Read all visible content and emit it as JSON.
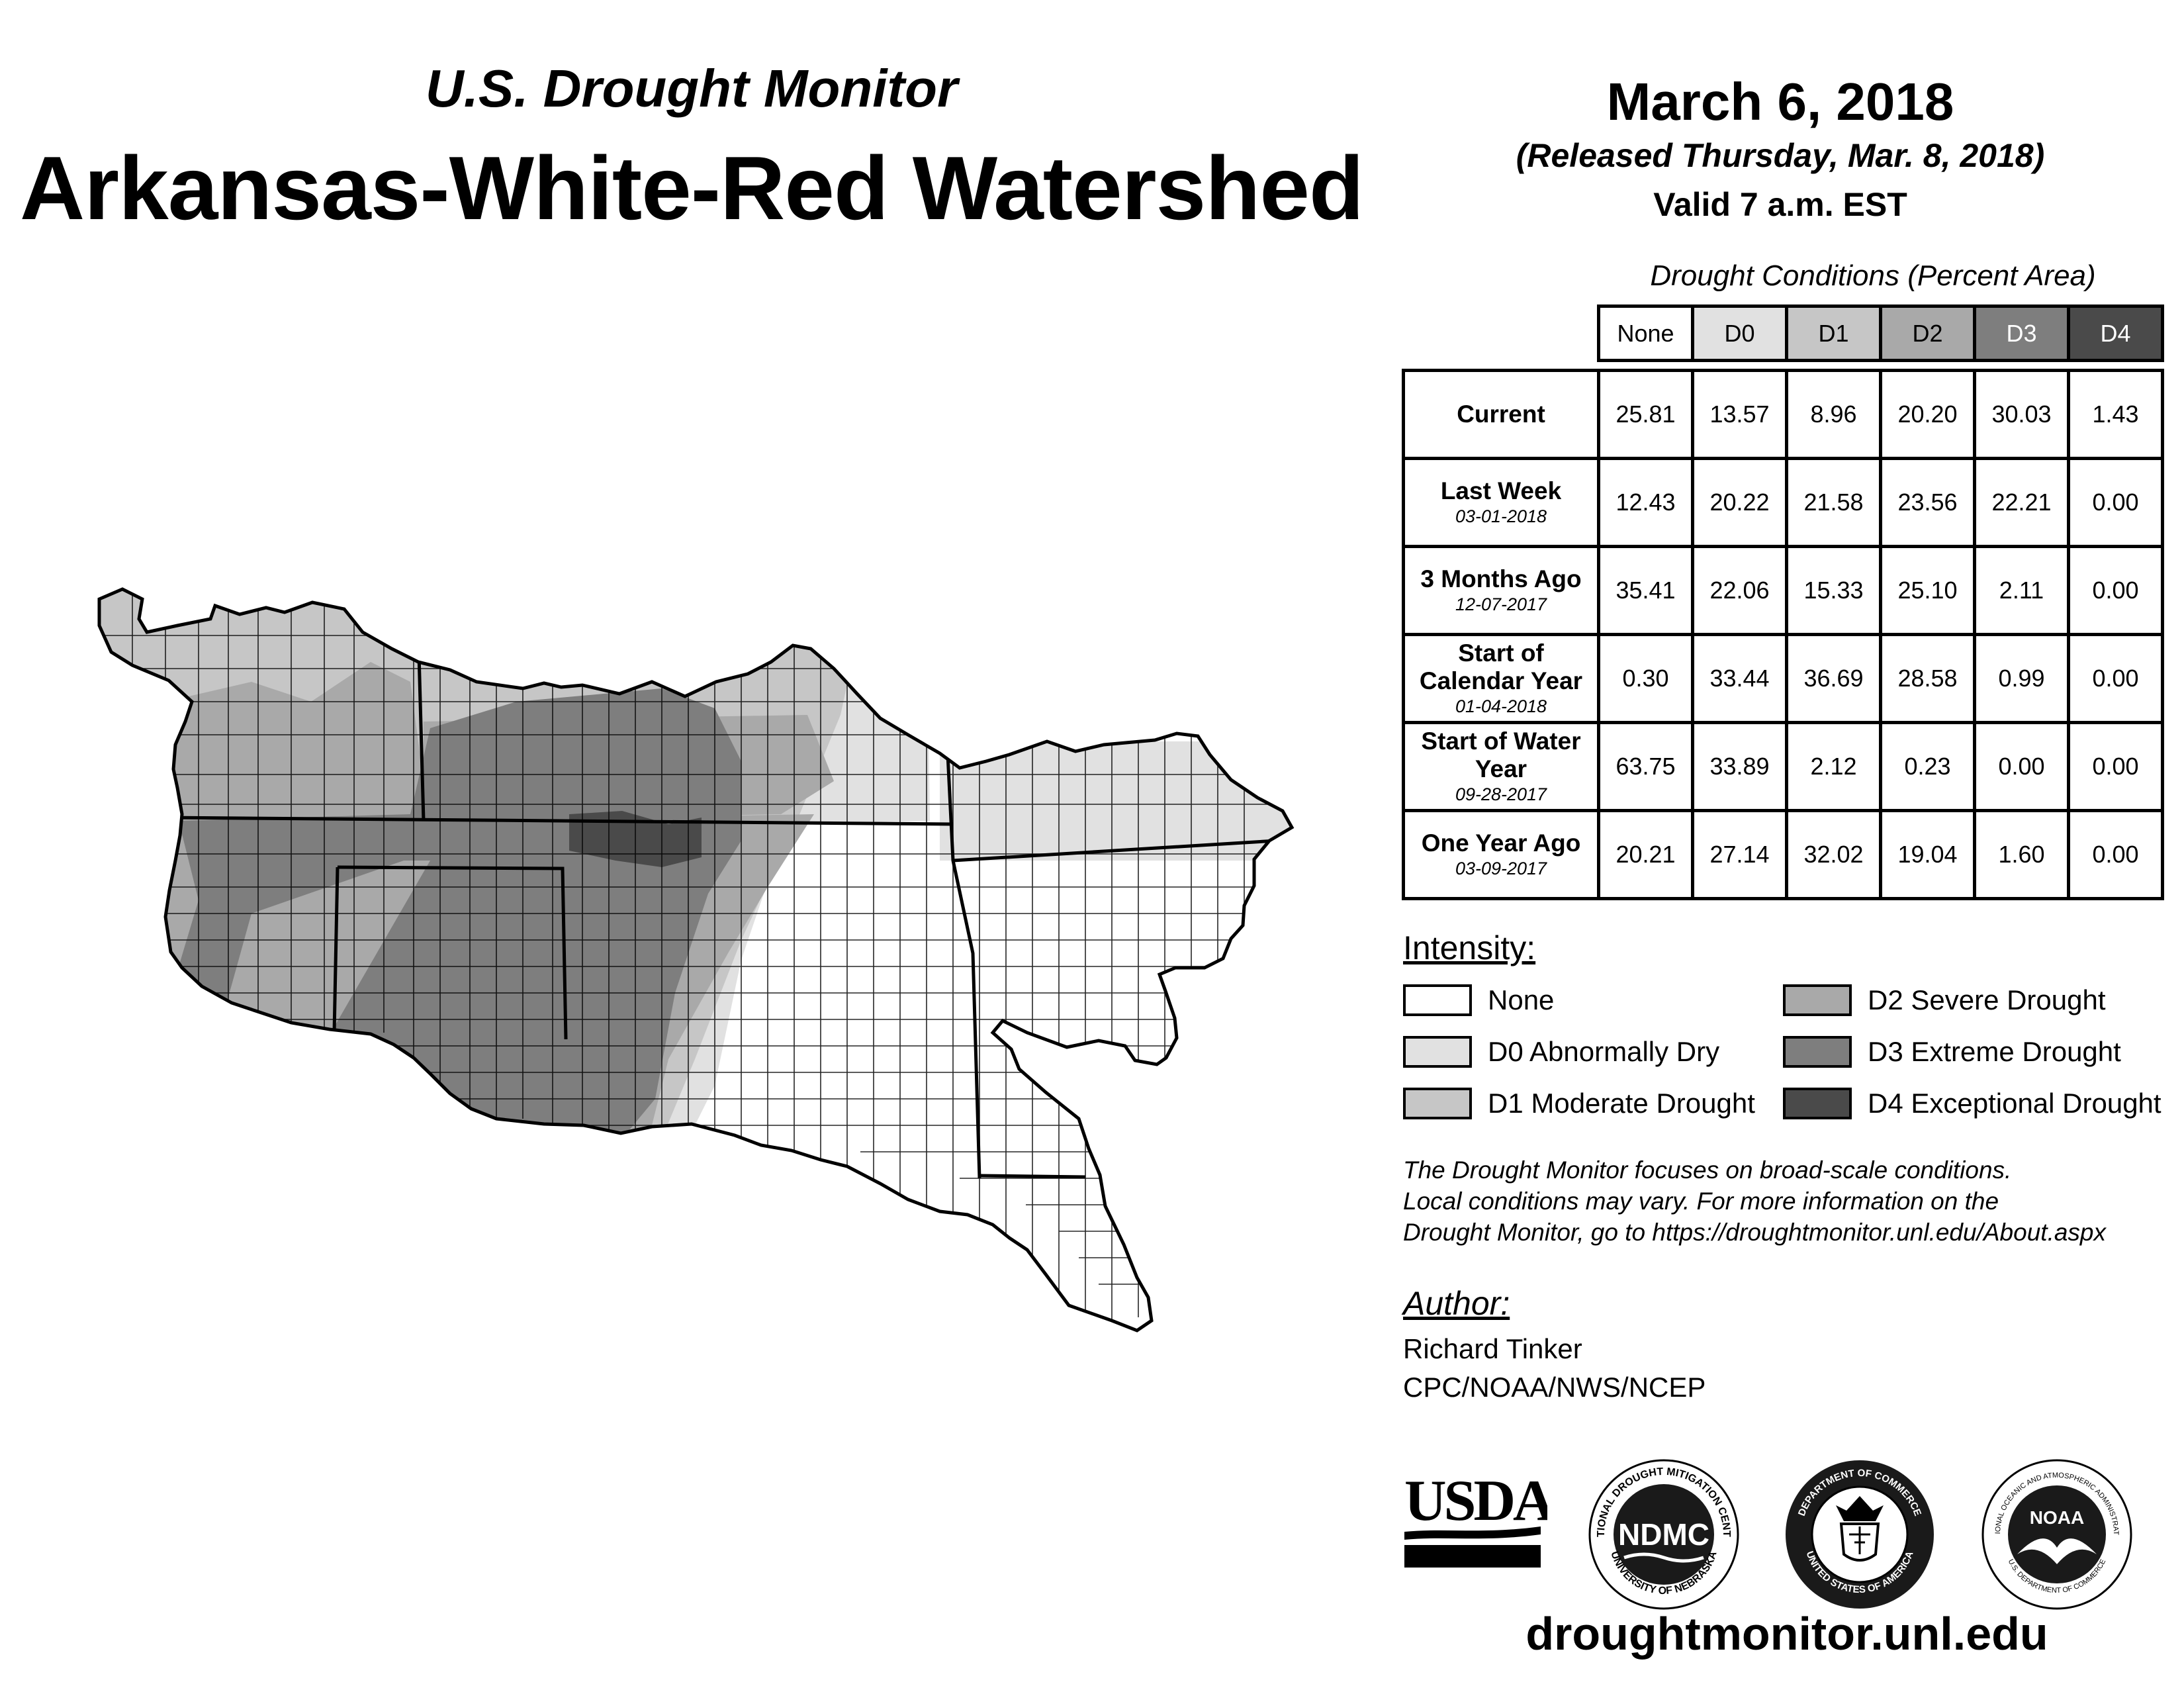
{
  "header": {
    "subtitle": "U.S. Drought Monitor",
    "title": "Arkansas-White-Red Watershed",
    "date": "March 6, 2018",
    "released": "(Released Thursday, Mar. 8, 2018)",
    "valid": "Valid 7 a.m. EST"
  },
  "table": {
    "caption": "Drought Conditions (Percent Area)",
    "columns": [
      "None",
      "D0",
      "D1",
      "D2",
      "D3",
      "D4"
    ],
    "rows": [
      {
        "label": "Current",
        "date": "",
        "values": [
          "25.81",
          "13.57",
          "8.96",
          "20.20",
          "30.03",
          "1.43"
        ]
      },
      {
        "label": "Last Week",
        "date": "03-01-2018",
        "values": [
          "12.43",
          "20.22",
          "21.58",
          "23.56",
          "22.21",
          "0.00"
        ]
      },
      {
        "label": "3 Months Ago",
        "date": "12-07-2017",
        "values": [
          "35.41",
          "22.06",
          "15.33",
          "25.10",
          "2.11",
          "0.00"
        ]
      },
      {
        "label": "Start of Calendar Year",
        "date": "01-04-2018",
        "values": [
          "0.30",
          "33.44",
          "36.69",
          "28.58",
          "0.99",
          "0.00"
        ]
      },
      {
        "label": "Start of Water Year",
        "date": "09-28-2017",
        "values": [
          "63.75",
          "33.89",
          "2.12",
          "0.23",
          "0.00",
          "0.00"
        ]
      },
      {
        "label": "One Year Ago",
        "date": "03-09-2017",
        "values": [
          "20.21",
          "27.14",
          "32.02",
          "19.04",
          "1.60",
          "0.00"
        ]
      }
    ]
  },
  "legend": {
    "heading": "Intensity:",
    "items": [
      {
        "label": "None",
        "color": "#ffffff"
      },
      {
        "label": "D0 Abnormally Dry",
        "color": "#e1e1e1"
      },
      {
        "label": "D1 Moderate Drought",
        "color": "#c6c6c6"
      },
      {
        "label": "D2 Severe Drought",
        "color": "#a9a9a9"
      },
      {
        "label": "D3 Extreme Drought",
        "color": "#7e7e7e"
      },
      {
        "label": "D4 Exceptional Drought",
        "color": "#4a4a4a"
      }
    ]
  },
  "note": {
    "line1": "The Drought Monitor focuses on broad-scale conditions.",
    "line2": "Local conditions may vary. For more information on the",
    "line3": "Drought Monitor, go to https://droughtmonitor.unl.edu/About.aspx"
  },
  "author": {
    "heading": "Author:",
    "name": "Richard Tinker",
    "org": "CPC/NOAA/NWS/NCEP"
  },
  "logos": {
    "usda": "USDA",
    "ndmc": "NDMC",
    "ndmc_ring_top": "NATIONAL DROUGHT MITIGATION CENTER",
    "ndmc_ring_bottom": "UNIVERSITY OF NEBRASKA",
    "doc_ring_top": "DEPARTMENT OF COMMERCE",
    "doc_ring_bottom": "UNITED STATES OF AMERICA",
    "noaa": "NOAA",
    "noaa_ring_top": "NATIONAL OCEANIC AND ATMOSPHERIC ADMINISTRATION",
    "noaa_ring_bottom": "U.S. DEPARTMENT OF COMMERCE"
  },
  "website": "droughtmonitor.unl.edu"
}
